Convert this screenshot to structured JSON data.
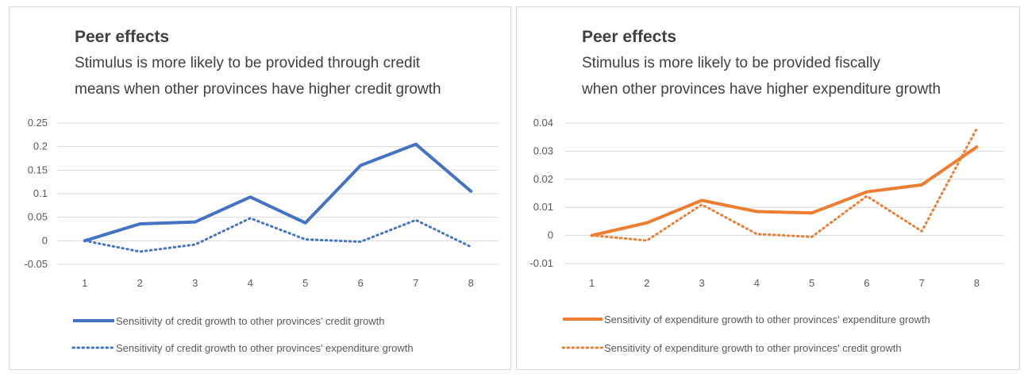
{
  "chart_data": [
    {
      "type": "line",
      "title": "Peer effects",
      "subtitle": [
        "Stimulus is more likely to be provided through credit",
        "means when other provinces have higher credit growth"
      ],
      "categories": [
        "1",
        "2",
        "3",
        "4",
        "5",
        "6",
        "7",
        "8"
      ],
      "y_ticks": [
        "0.25",
        "0.2",
        "0.15",
        "0.1",
        "0.05",
        "0",
        "-0.05"
      ],
      "ylim": [
        -0.05,
        0.25
      ],
      "grid": true,
      "legend_position": "bottom-left",
      "series": [
        {
          "name": "Sensitivity of credit growth to other provinces' credit growth",
          "values": [
            0.0,
            0.036,
            0.04,
            0.093,
            0.038,
            0.16,
            0.205,
            0.105
          ],
          "color": "#4472C4",
          "style": "solid"
        },
        {
          "name": "Sensitivity of credit growth to other provinces' expenditure growth",
          "values": [
            0.0,
            -0.023,
            -0.008,
            0.048,
            0.003,
            -0.002,
            0.044,
            -0.013
          ],
          "color": "#4472C4",
          "style": "dotted"
        }
      ]
    },
    {
      "type": "line",
      "title": "Peer effects",
      "subtitle": [
        "Stimulus is more likely to be provided fiscally",
        "when other provinces have higher expenditure growth"
      ],
      "categories": [
        "1",
        "2",
        "3",
        "4",
        "5",
        "6",
        "7",
        "8"
      ],
      "y_ticks": [
        "0.04",
        "0.03",
        "0.02",
        "0.01",
        "0",
        "-0.01"
      ],
      "ylim": [
        -0.01,
        0.04
      ],
      "grid": true,
      "legend_position": "bottom-left",
      "series": [
        {
          "name": "Sensitivity of expenditure growth to other provinces' expenditure growth",
          "values": [
            0.0,
            0.0045,
            0.0125,
            0.0085,
            0.008,
            0.0155,
            0.018,
            0.0315
          ],
          "color": "#ED7D31",
          "style": "solid"
        },
        {
          "name": "Sensitivity of expenditure growth to other provinces' credit growth",
          "values": [
            0.0,
            -0.0018,
            0.011,
            0.0005,
            -0.0005,
            0.014,
            0.0015,
            0.038
          ],
          "color": "#ED7D31",
          "style": "dotted"
        }
      ]
    }
  ]
}
